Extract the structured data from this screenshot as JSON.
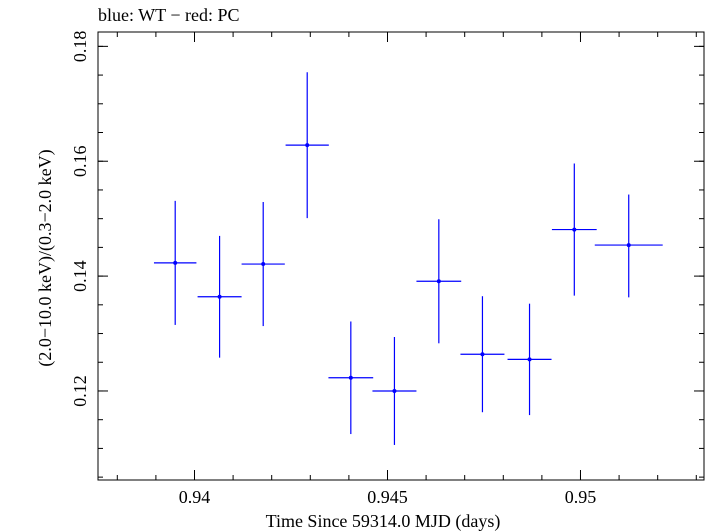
{
  "chart_data": {
    "type": "scatter",
    "title": "blue: WT − red: PC",
    "xlabel": "Time Since 59314.0 MJD (days)",
    "ylabel": "(2.0−10.0 keV)/(0.3−2.0 keV)",
    "xlim": [
      0.9375,
      0.9532
    ],
    "ylim": [
      0.1045,
      0.1825
    ],
    "x_ticks": [
      {
        "value": 0.94,
        "label": "0.94"
      },
      {
        "value": 0.945,
        "label": "0.945"
      },
      {
        "value": 0.95,
        "label": "0.95"
      }
    ],
    "y_ticks": [
      {
        "value": 0.12,
        "label": "0.12"
      },
      {
        "value": 0.14,
        "label": "0.14"
      },
      {
        "value": 0.16,
        "label": "0.16"
      },
      {
        "value": 0.18,
        "label": "0.18"
      }
    ],
    "x_minor_step": 0.001,
    "y_minor_step": 0.005,
    "grid": false,
    "series": [
      {
        "color": "#0000ff",
        "points": [
          {
            "x": 0.9395,
            "xerr": 0.00055,
            "y": 0.1423,
            "yerr_low": 0.0108,
            "yerr_high": 0.0108
          },
          {
            "x": 0.94065,
            "xerr": 0.00057,
            "y": 0.1364,
            "yerr_low": 0.0106,
            "yerr_high": 0.0106
          },
          {
            "x": 0.94178,
            "xerr": 0.00056,
            "y": 0.1421,
            "yerr_low": 0.0108,
            "yerr_high": 0.0108
          },
          {
            "x": 0.94292,
            "xerr": 0.00056,
            "y": 0.1628,
            "yerr_low": 0.0127,
            "yerr_high": 0.0127
          },
          {
            "x": 0.94405,
            "xerr": 0.00058,
            "y": 0.1223,
            "yerr_low": 0.0098,
            "yerr_high": 0.0098
          },
          {
            "x": 0.94518,
            "xerr": 0.00057,
            "y": 0.12,
            "yerr_low": 0.0094,
            "yerr_high": 0.0094
          },
          {
            "x": 0.94633,
            "xerr": 0.00058,
            "y": 0.1391,
            "yerr_low": 0.0108,
            "yerr_high": 0.0108
          },
          {
            "x": 0.94746,
            "xerr": 0.00057,
            "y": 0.1264,
            "yerr_low": 0.0101,
            "yerr_high": 0.0101
          },
          {
            "x": 0.94868,
            "xerr": 0.00057,
            "y": 0.1255,
            "yerr_low": 0.0097,
            "yerr_high": 0.0097
          },
          {
            "x": 0.94984,
            "xerr": 0.00058,
            "y": 0.1481,
            "yerr_low": 0.0115,
            "yerr_high": 0.0115
          },
          {
            "x": 0.95125,
            "xerr": 0.00088,
            "y": 0.1454,
            "yerr_low": 0.0091,
            "yerr_high": 0.0088
          }
        ]
      }
    ]
  }
}
